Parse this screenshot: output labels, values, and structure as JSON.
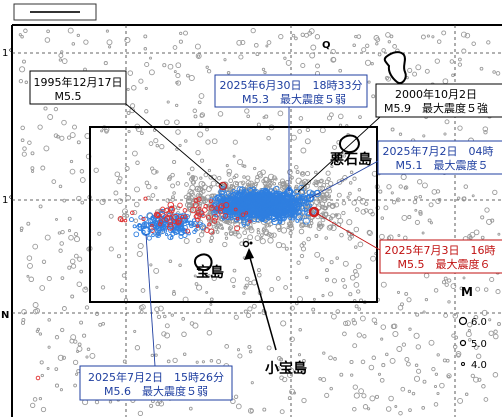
{
  "colors": {
    "background_events": "#9a9a9a",
    "recent_events": "#2f7fe0",
    "historic_events": "#e03030",
    "label_black": "#000000",
    "label_blue": "#1f3fa0",
    "label_red": "#c01010",
    "grid": "#333333"
  },
  "map": {
    "axis_labels": {
      "top_left": "1°",
      "mid_left": "1°",
      "bottom_left": "N"
    },
    "north_marker": "Q",
    "islands": [
      {
        "name": "悪石島",
        "label": "悪石島"
      },
      {
        "name": "宝島",
        "label": "宝島"
      },
      {
        "name": "小宝島",
        "label": "小宝島"
      }
    ],
    "callouts": [
      {
        "id": "1995",
        "line1": "1995年12月17日",
        "line2": "M5.5",
        "color": "black"
      },
      {
        "id": "2025-06-30",
        "line1": "2025年6月30日　18時33分",
        "line2": "M5.3　最大震度５弱",
        "color": "blue"
      },
      {
        "id": "2000",
        "line1": "2000年10月2日",
        "line2": "M5.9　最大震度５強",
        "color": "black"
      },
      {
        "id": "2025-07-02a",
        "line1": "2025年7月2日　04時",
        "line2": "M5.1　最大震度５",
        "color": "blue"
      },
      {
        "id": "2025-07-03",
        "line1": "2025年7月3日　16時",
        "line2": "M5.5　最大震度６",
        "color": "red"
      },
      {
        "id": "2025-07-02b",
        "line1": "2025年7月2日　15時26分",
        "line2": "M5.6　最大震度５弱",
        "color": "blue"
      }
    ],
    "magnitude_legend": {
      "title": "M",
      "entries": [
        "6.0",
        "5.0",
        "4.0"
      ]
    }
  }
}
